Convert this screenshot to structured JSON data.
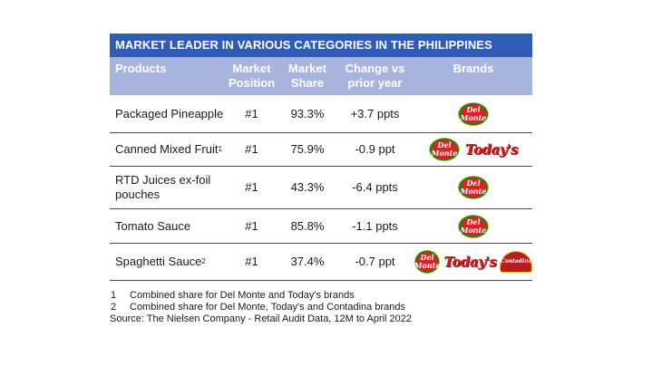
{
  "table": {
    "title": "MARKET LEADER IN VARIOUS CATEGORIES IN THE PHILIPPINES",
    "headers": {
      "products": "Products",
      "position_1": "Market",
      "position_2": "Position",
      "share_1": "Market",
      "share_2": "Share",
      "change_1": "Change vs",
      "change_2": "prior year",
      "brands": "Brands"
    },
    "rows": [
      {
        "product": "Packaged Pineapple",
        "sup": "",
        "position": "#1",
        "share": "93.3%",
        "change": "+3.7 ppts",
        "brands": [
          "Del Monte"
        ]
      },
      {
        "product": "Canned Mixed Fruit",
        "sup": "1",
        "position": "#1",
        "share": "75.9%",
        "change": "-0.9 ppt",
        "brands": [
          "Del Monte",
          "Today's"
        ]
      },
      {
        "product": "RTD Juices ex-foil pouches",
        "sup": "",
        "position": "#1",
        "share": "43.3%",
        "change": "-6.4 ppts",
        "brands": [
          "Del Monte"
        ]
      },
      {
        "product": "Tomato Sauce",
        "sup": "",
        "position": "#1",
        "share": "85.8%",
        "change": "-1.1 ppts",
        "brands": [
          "Del Monte"
        ]
      },
      {
        "product": "Spaghetti Sauce",
        "sup": "2",
        "position": "#1",
        "share": "37.4%",
        "change": "-0.7 ppt",
        "brands": [
          "Del Monte",
          "Today's",
          "Contadina"
        ]
      }
    ]
  },
  "logos": {
    "del_monte_line1": "Del",
    "del_monte_line2": "Monte",
    "todays": "Today's",
    "contadina": "Contadina"
  },
  "notes": {
    "n1_num": "1",
    "n1_text": "Combined share for Del Monte and Today's brands",
    "n2_num": "2",
    "n2_text": "Combined share for Del Monte, Today's and Contadina brands",
    "source": "Source: The Nielsen Company - Retail Audit Data, 12M to April 2022"
  },
  "colors": {
    "title_bg": "#2e5cb8",
    "header_bg": "#a7b4dc",
    "del_monte_red": "#e02020",
    "todays_red": "#d21f1f"
  }
}
